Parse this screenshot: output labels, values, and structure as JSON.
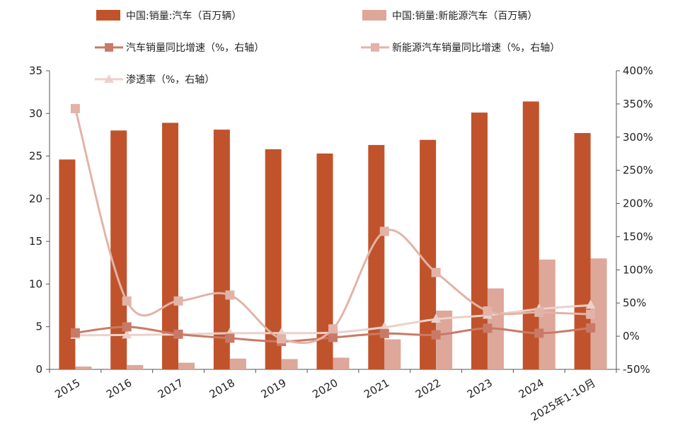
{
  "chart_data": {
    "type": "bar",
    "categories": [
      "2015",
      "2016",
      "2017",
      "2018",
      "2019",
      "2020",
      "2021",
      "2022",
      "2023",
      "2024",
      "2025年1-10月"
    ],
    "left_axis": {
      "ylim": [
        0,
        35
      ],
      "ticks": [
        0,
        5,
        10,
        15,
        20,
        25,
        30,
        35
      ],
      "tick_labels": [
        "0",
        "5",
        "10",
        "15",
        "20",
        "25",
        "30",
        "35"
      ]
    },
    "right_axis": {
      "ylim": [
        -50,
        400
      ],
      "ticks": [
        -50,
        0,
        50,
        100,
        150,
        200,
        250,
        300,
        350,
        400
      ],
      "tick_labels": [
        "-50%",
        "0%",
        "50%",
        "100%",
        "150%",
        "200%",
        "250%",
        "300%",
        "350%",
        "400%"
      ]
    },
    "series": [
      {
        "name": "中国:销量:汽车（百万辆）",
        "kind": "bar",
        "axis": "left",
        "color": "#c0532b",
        "values": [
          24.6,
          28.0,
          28.9,
          28.1,
          25.8,
          25.3,
          26.3,
          26.9,
          30.1,
          31.4,
          27.7
        ]
      },
      {
        "name": "中国:销量:新能源汽车（百万辆）",
        "kind": "bar",
        "axis": "left",
        "color": "#dda79a",
        "values": [
          0.33,
          0.51,
          0.78,
          1.26,
          1.21,
          1.37,
          3.52,
          6.89,
          9.49,
          12.87,
          13.0
        ]
      },
      {
        "name": "汽车销量同比增速（%，右轴）",
        "kind": "line",
        "axis": "right",
        "marker": "square",
        "color": "#c97a66",
        "values": [
          5,
          14,
          3,
          -3,
          -8,
          -2,
          4,
          2,
          12,
          4.5,
          12.5
        ]
      },
      {
        "name": "新能源汽车销量同比增速（%，右轴）",
        "kind": "line",
        "axis": "right",
        "marker": "square",
        "color": "#e2b3a7",
        "values": [
          343,
          53,
          53,
          62,
          -4,
          11,
          158,
          96,
          38,
          36,
          33
        ]
      },
      {
        "name": "渗透率（%，右轴）",
        "kind": "line",
        "axis": "right",
        "marker": "triangle",
        "color": "#ecd1ca",
        "values": [
          1.3,
          1.8,
          2.7,
          4.5,
          4.7,
          5.4,
          13.4,
          25.6,
          31.6,
          40.9,
          46.7
        ]
      }
    ]
  }
}
